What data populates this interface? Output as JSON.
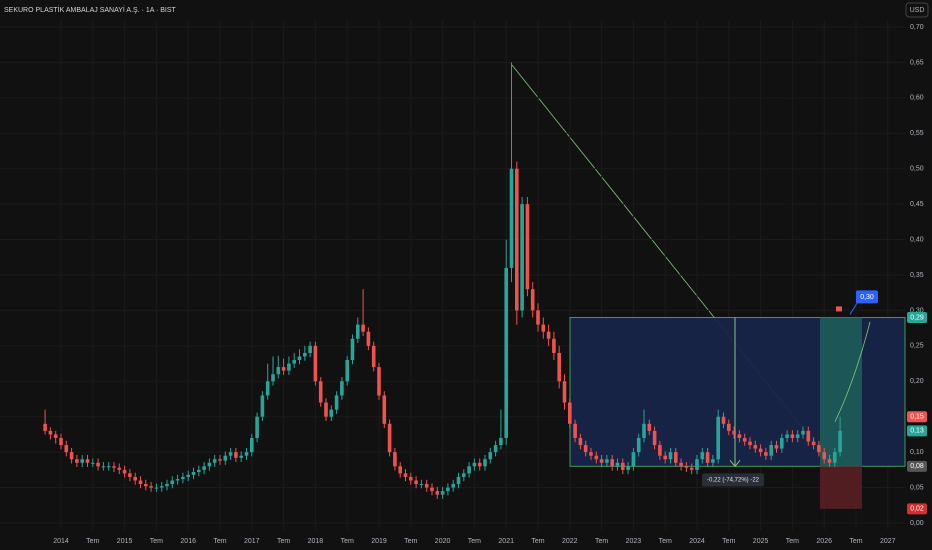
{
  "chart_data": {
    "type": "candlestick",
    "title": "SEKURO PLASTİK AMBALAJ SANAYİ A.Ş. · 1A · BIST",
    "currency": "USD",
    "up_color": "#26a69a",
    "down_color": "#ef5350",
    "ylim": [
      0,
      0.7
    ],
    "yticks": [
      {
        "value": 0,
        "label": "0,00"
      },
      {
        "value": 0.05,
        "label": "0,05"
      },
      {
        "value": 0.1,
        "label": "0,10"
      },
      {
        "value": 0.15,
        "label": "0,15"
      },
      {
        "value": 0.2,
        "label": "0,20"
      },
      {
        "value": 0.25,
        "label": "0,25"
      },
      {
        "value": 0.3,
        "label": "0,30"
      },
      {
        "value": 0.35,
        "label": "0,35"
      },
      {
        "value": 0.4,
        "label": "0,40"
      },
      {
        "value": 0.45,
        "label": "0,45"
      },
      {
        "value": 0.5,
        "label": "0,50"
      },
      {
        "value": 0.55,
        "label": "0,55"
      },
      {
        "value": 0.6,
        "label": "0,60"
      },
      {
        "value": 0.65,
        "label": "0,65"
      },
      {
        "value": 0.7,
        "label": "0,70"
      }
    ],
    "xticks": [
      "2014",
      "Tem",
      "2015",
      "Tem",
      "2016",
      "Tem",
      "2017",
      "Tem",
      "2018",
      "Tem",
      "2019",
      "Tem",
      "2020",
      "Tem",
      "2021",
      "Tem",
      "2022",
      "Tem",
      "2023",
      "Tem",
      "2024",
      "Tem",
      "2025",
      "Tem",
      "2026",
      "Tem",
      "2027"
    ],
    "open": [
      0.14,
      0.13,
      0.125,
      0.12,
      0.11,
      0.1,
      0.09,
      0.085,
      0.09,
      0.085,
      0.085,
      0.08,
      0.08,
      0.08,
      0.078,
      0.075,
      0.07,
      0.065,
      0.06,
      0.055,
      0.052,
      0.05,
      0.05,
      0.052,
      0.055,
      0.06,
      0.062,
      0.065,
      0.068,
      0.072,
      0.075,
      0.08,
      0.085,
      0.09,
      0.088,
      0.095,
      0.1,
      0.092,
      0.095,
      0.1,
      0.12,
      0.15,
      0.18,
      0.2,
      0.21,
      0.22,
      0.215,
      0.225,
      0.23,
      0.235,
      0.24,
      0.25,
      0.2,
      0.17,
      0.15,
      0.16,
      0.18,
      0.2,
      0.23,
      0.26,
      0.28,
      0.27,
      0.25,
      0.22,
      0.18,
      0.14,
      0.1,
      0.08,
      0.07,
      0.065,
      0.06,
      0.055,
      0.055,
      0.05,
      0.045,
      0.04,
      0.045,
      0.05,
      0.055,
      0.065,
      0.07,
      0.08,
      0.085,
      0.08,
      0.09,
      0.1,
      0.11,
      0.12,
      0.36,
      0.5,
      0.3,
      0.45,
      0.33,
      0.3,
      0.28,
      0.27,
      0.26,
      0.24,
      0.2,
      0.17,
      0.14,
      0.12,
      0.11,
      0.1,
      0.095,
      0.09,
      0.085,
      0.09,
      0.08,
      0.085,
      0.075,
      0.08,
      0.1,
      0.12,
      0.14,
      0.13,
      0.11,
      0.095,
      0.09,
      0.1,
      0.085,
      0.08,
      0.078,
      0.075,
      0.09,
      0.1,
      0.085,
      0.09,
      0.15,
      0.14,
      0.13,
      0.125,
      0.12,
      0.115,
      0.11,
      0.105,
      0.1,
      0.095,
      0.11,
      0.105,
      0.12,
      0.125,
      0.12,
      0.125,
      0.13,
      0.115,
      0.11,
      0.1,
      0.09,
      0.085,
      0.1
    ],
    "high": [
      0.16,
      0.135,
      0.13,
      0.126,
      0.116,
      0.106,
      0.096,
      0.096,
      0.096,
      0.091,
      0.091,
      0.086,
      0.086,
      0.086,
      0.084,
      0.081,
      0.076,
      0.071,
      0.066,
      0.061,
      0.058,
      0.056,
      0.058,
      0.061,
      0.066,
      0.068,
      0.071,
      0.074,
      0.078,
      0.081,
      0.086,
      0.091,
      0.096,
      0.096,
      0.101,
      0.106,
      0.106,
      0.101,
      0.106,
      0.126,
      0.156,
      0.186,
      0.225,
      0.235,
      0.236,
      0.232,
      0.235,
      0.24,
      0.245,
      0.25,
      0.256,
      0.256,
      0.206,
      0.176,
      0.166,
      0.186,
      0.206,
      0.236,
      0.266,
      0.29,
      0.33,
      0.276,
      0.256,
      0.226,
      0.186,
      0.146,
      0.106,
      0.086,
      0.076,
      0.071,
      0.066,
      0.061,
      0.061,
      0.056,
      0.051,
      0.051,
      0.056,
      0.061,
      0.071,
      0.076,
      0.086,
      0.091,
      0.091,
      0.096,
      0.106,
      0.116,
      0.16,
      0.4,
      0.65,
      0.51,
      0.46,
      0.46,
      0.34,
      0.31,
      0.29,
      0.28,
      0.27,
      0.25,
      0.21,
      0.176,
      0.146,
      0.126,
      0.116,
      0.106,
      0.101,
      0.096,
      0.096,
      0.096,
      0.091,
      0.091,
      0.086,
      0.106,
      0.126,
      0.16,
      0.146,
      0.136,
      0.116,
      0.101,
      0.106,
      0.106,
      0.091,
      0.086,
      0.084,
      0.096,
      0.106,
      0.106,
      0.096,
      0.16,
      0.156,
      0.146,
      0.136,
      0.131,
      0.126,
      0.121,
      0.116,
      0.111,
      0.106,
      0.116,
      0.116,
      0.126,
      0.131,
      0.131,
      0.131,
      0.136,
      0.136,
      0.121,
      0.116,
      0.106,
      0.096,
      0.106,
      0.15
    ],
    "low": [
      0.125,
      0.118,
      0.112,
      0.104,
      0.094,
      0.084,
      0.079,
      0.079,
      0.079,
      0.079,
      0.074,
      0.074,
      0.074,
      0.072,
      0.069,
      0.064,
      0.059,
      0.054,
      0.049,
      0.046,
      0.044,
      0.044,
      0.044,
      0.046,
      0.049,
      0.054,
      0.056,
      0.059,
      0.062,
      0.066,
      0.069,
      0.074,
      0.079,
      0.082,
      0.082,
      0.089,
      0.086,
      0.086,
      0.089,
      0.094,
      0.114,
      0.144,
      0.174,
      0.194,
      0.204,
      0.209,
      0.209,
      0.219,
      0.224,
      0.229,
      0.234,
      0.194,
      0.164,
      0.144,
      0.144,
      0.154,
      0.174,
      0.194,
      0.224,
      0.254,
      0.264,
      0.244,
      0.214,
      0.174,
      0.134,
      0.094,
      0.074,
      0.064,
      0.059,
      0.054,
      0.049,
      0.049,
      0.044,
      0.039,
      0.034,
      0.034,
      0.039,
      0.044,
      0.049,
      0.059,
      0.064,
      0.074,
      0.074,
      0.074,
      0.084,
      0.094,
      0.104,
      0.11,
      0.34,
      0.28,
      0.29,
      0.32,
      0.29,
      0.27,
      0.26,
      0.25,
      0.23,
      0.19,
      0.16,
      0.134,
      0.114,
      0.104,
      0.094,
      0.089,
      0.084,
      0.079,
      0.079,
      0.074,
      0.074,
      0.069,
      0.069,
      0.074,
      0.094,
      0.114,
      0.124,
      0.104,
      0.089,
      0.084,
      0.084,
      0.079,
      0.074,
      0.072,
      0.069,
      0.069,
      0.084,
      0.079,
      0.079,
      0.084,
      0.134,
      0.124,
      0.119,
      0.114,
      0.109,
      0.104,
      0.099,
      0.094,
      0.089,
      0.089,
      0.099,
      0.099,
      0.114,
      0.114,
      0.114,
      0.119,
      0.109,
      0.104,
      0.094,
      0.084,
      0.079,
      0.079,
      0.094
    ],
    "close": [
      0.13,
      0.125,
      0.12,
      0.11,
      0.1,
      0.09,
      0.085,
      0.09,
      0.085,
      0.085,
      0.08,
      0.08,
      0.08,
      0.078,
      0.075,
      0.07,
      0.065,
      0.06,
      0.055,
      0.052,
      0.05,
      0.05,
      0.052,
      0.055,
      0.06,
      0.062,
      0.065,
      0.068,
      0.072,
      0.075,
      0.08,
      0.085,
      0.09,
      0.088,
      0.095,
      0.1,
      0.092,
      0.095,
      0.1,
      0.12,
      0.15,
      0.18,
      0.2,
      0.21,
      0.22,
      0.215,
      0.225,
      0.23,
      0.235,
      0.24,
      0.25,
      0.2,
      0.17,
      0.15,
      0.16,
      0.18,
      0.2,
      0.23,
      0.26,
      0.28,
      0.27,
      0.25,
      0.22,
      0.18,
      0.14,
      0.1,
      0.08,
      0.07,
      0.065,
      0.06,
      0.055,
      0.055,
      0.05,
      0.045,
      0.04,
      0.045,
      0.05,
      0.055,
      0.065,
      0.07,
      0.08,
      0.085,
      0.08,
      0.09,
      0.1,
      0.11,
      0.12,
      0.36,
      0.5,
      0.3,
      0.45,
      0.33,
      0.3,
      0.28,
      0.27,
      0.26,
      0.24,
      0.2,
      0.17,
      0.14,
      0.12,
      0.11,
      0.1,
      0.095,
      0.09,
      0.085,
      0.09,
      0.08,
      0.085,
      0.075,
      0.08,
      0.1,
      0.12,
      0.14,
      0.13,
      0.11,
      0.095,
      0.09,
      0.1,
      0.085,
      0.08,
      0.078,
      0.075,
      0.09,
      0.1,
      0.085,
      0.09,
      0.15,
      0.14,
      0.13,
      0.125,
      0.12,
      0.115,
      0.11,
      0.105,
      0.1,
      0.095,
      0.11,
      0.105,
      0.12,
      0.125,
      0.12,
      0.125,
      0.13,
      0.115,
      0.11,
      0.1,
      0.09,
      0.085,
      0.1,
      0.13
    ],
    "price_labels": [
      {
        "value": 0.29,
        "label": "0,29",
        "color": "#26a69a"
      },
      {
        "value": 0.15,
        "label": "0,15",
        "color": "#ef5350"
      },
      {
        "value": 0.13,
        "label": "0,13",
        "color": "#26a69a"
      },
      {
        "value": 0.08,
        "label": "0,08",
        "color": "#555555"
      },
      {
        "value": 0.02,
        "label": "0,02",
        "color": "#d32f2f"
      }
    ],
    "target": {
      "value": 0.3,
      "label": "0,30"
    },
    "measure_label": "-0,22 (-74,72%) -22"
  }
}
